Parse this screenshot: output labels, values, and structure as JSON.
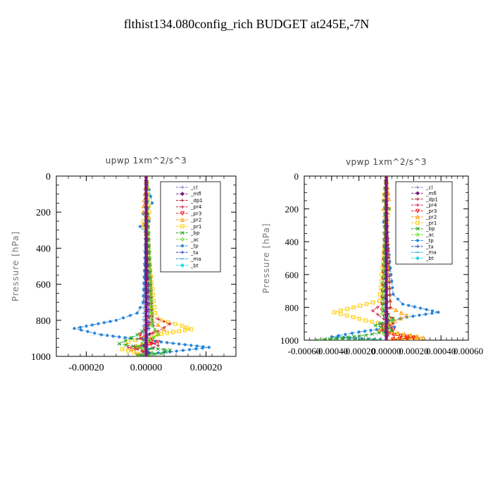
{
  "page": {
    "title": "flthist134.080config_rich  BUDGET at245E,-7N"
  },
  "legend_entries": [
    {
      "label": "_cl",
      "color": "#8c6cc0",
      "marker": "plus"
    },
    {
      "label": "_mfl",
      "color": "#7a1a7a",
      "marker": "diamond"
    },
    {
      "label": "_dp1",
      "color": "#b01a3a",
      "marker": "plus"
    },
    {
      "label": "_pr4",
      "color": "#d41e3c",
      "marker": "plus"
    },
    {
      "label": "_pr3",
      "color": "#f01818",
      "marker": "triangle-down"
    },
    {
      "label": "_pr2",
      "color": "#ff9a00",
      "marker": "triangle-up"
    },
    {
      "label": "_pr1",
      "color": "#ffcc00",
      "marker": "square"
    },
    {
      "label": "_bp",
      "color": "#22a222",
      "marker": "x"
    },
    {
      "label": "_ac",
      "color": "#66dd22",
      "marker": "diamond-open"
    },
    {
      "label": "_tp",
      "color": "#2080d8",
      "marker": "star"
    },
    {
      "label": "_ta",
      "color": "#2040c0",
      "marker": "plus"
    },
    {
      "label": "_ma",
      "color": "#20a0e0",
      "marker": "dash"
    },
    {
      "label": "_bt",
      "color": "#20d8e8",
      "marker": "diamond-filled"
    }
  ],
  "chart_data": [
    {
      "type": "line",
      "title": "upwp   1xm^2/s^3",
      "xlabel": "",
      "ylabel": "Pressure [hPa]",
      "xlim": [
        -0.0003,
        0.0003
      ],
      "ylim": [
        1000,
        0
      ],
      "xticks": [
        -0.0002,
        0,
        0.0002
      ],
      "xtick_labels": [
        "-0.00020",
        "0.00000",
        "0.00020"
      ],
      "yticks": [
        0,
        200,
        400,
        600,
        800,
        1000
      ],
      "ytick_labels": [
        "0",
        "200",
        "400",
        "600",
        "800",
        "1000"
      ],
      "legend": "top-right",
      "grid": false,
      "series": [
        {
          "name": "_tp",
          "x": [
            0,
            2e-05,
            -1e-05,
            1e-05,
            -2e-05,
            0,
            -1e-05,
            -3e-05,
            -0.0001,
            -0.00024,
            -0.00015,
            5e-05,
            0.00021,
            8e-05,
            -2e-05,
            0
          ],
          "y": [
            0,
            150,
            210,
            250,
            280,
            320,
            700,
            760,
            800,
            845,
            880,
            920,
            950,
            975,
            990,
            1000
          ]
        },
        {
          "name": "_pr1",
          "x": [
            0,
            1e-05,
            -1e-05,
            0,
            3e-05,
            5e-05,
            0.00012,
            0.00015,
            3e-05,
            -6e-05,
            -8e-05,
            -2e-05,
            0
          ],
          "y": [
            0,
            200,
            250,
            320,
            760,
            800,
            830,
            850,
            880,
            920,
            960,
            985,
            1000
          ]
        },
        {
          "name": "_pr2",
          "x": [
            0,
            -1e-05,
            1e-05,
            -1e-05,
            0,
            2e-05,
            6e-05,
            2e-05,
            -5e-05,
            -3e-05,
            0
          ],
          "y": [
            0,
            200,
            230,
            270,
            320,
            800,
            850,
            900,
            960,
            990,
            1000
          ]
        },
        {
          "name": "_pr4",
          "x": [
            0,
            2e-05,
            8e-05,
            4e-05,
            -2e-05,
            3e-05,
            -6e-05,
            1e-05,
            0
          ],
          "y": [
            0,
            780,
            820,
            860,
            900,
            930,
            950,
            980,
            1000
          ]
        },
        {
          "name": "_dp1",
          "x": [
            0,
            2e-05,
            3e-05,
            -2e-05,
            4e-05,
            -1e-05,
            0
          ],
          "y": [
            0,
            800,
            860,
            900,
            940,
            975,
            1000
          ]
        },
        {
          "name": "_pr3",
          "x": [
            0,
            1e-05,
            -2e-05,
            4e-05,
            -3e-05,
            1e-05,
            0
          ],
          "y": [
            0,
            820,
            880,
            920,
            955,
            985,
            1000
          ]
        },
        {
          "name": "_bp",
          "x": [
            0,
            2e-05,
            -3e-05,
            -9e-05,
            -2e-05,
            8e-05,
            5e-05,
            -3e-05,
            0
          ],
          "y": [
            0,
            820,
            880,
            930,
            950,
            965,
            985,
            995,
            1000
          ]
        },
        {
          "name": "_ac",
          "x": [
            0,
            2e-05,
            4e-05,
            1e-05,
            -3e-05,
            2e-05,
            0
          ],
          "y": [
            0,
            830,
            880,
            910,
            945,
            980,
            1000
          ]
        },
        {
          "name": "_ta",
          "x": [
            0,
            1e-05,
            -1e-05,
            1e-05,
            0
          ],
          "y": [
            0,
            880,
            940,
            980,
            1000
          ]
        },
        {
          "name": "_ma",
          "x": [
            0,
            -1e-05,
            1e-05,
            0
          ],
          "y": [
            0,
            900,
            960,
            1000
          ]
        },
        {
          "name": "_bt",
          "x": [
            0,
            0
          ],
          "y": [
            0,
            1000
          ]
        },
        {
          "name": "_cl",
          "x": [
            0,
            0
          ],
          "y": [
            0,
            1000
          ]
        },
        {
          "name": "_mfl",
          "x": [
            0,
            0
          ],
          "y": [
            0,
            1000
          ]
        }
      ]
    },
    {
      "type": "line",
      "title": "vpwp   1xm^2/s^3",
      "xlabel": "",
      "ylabel": "Pressure [hPa]",
      "xlim": [
        -0.0006,
        0.0006
      ],
      "ylim": [
        1000,
        0
      ],
      "xticks": [
        -0.0006,
        -0.0004,
        -0.0002,
        0,
        0.0002,
        0.0004,
        0.0006
      ],
      "xtick_labels": [
        "-0.00060",
        "-0.00040",
        "-0.00020",
        "0.00000",
        "0.00020",
        "0.00040",
        "0.00060"
      ],
      "yticks": [
        0,
        200,
        400,
        600,
        800,
        1000
      ],
      "ytick_labels": [
        "0",
        "200",
        "400",
        "600",
        "800",
        "1000"
      ],
      "legend": "top-right",
      "grid": false,
      "series": [
        {
          "name": "_tp",
          "x": [
            0,
            -2e-05,
            2e-05,
            -2e-05,
            0,
            5e-05,
            0.00012,
            0.00038,
            0.00015,
            -5e-05,
            6e-05,
            -0.0002,
            -0.0004,
            0
          ],
          "y": [
            0,
            150,
            200,
            280,
            320,
            720,
            780,
            830,
            860,
            900,
            920,
            950,
            980,
            1000
          ]
        },
        {
          "name": "_pr1",
          "x": [
            0,
            -2e-05,
            2e-05,
            0,
            -5e-05,
            -0.00038,
            -0.00015,
            3e-05,
            -4e-05,
            8e-05,
            0.00022,
            5e-05,
            0
          ],
          "y": [
            0,
            150,
            200,
            320,
            760,
            830,
            880,
            910,
            940,
            960,
            980,
            995,
            1000
          ]
        },
        {
          "name": "_pr2",
          "x": [
            0,
            2e-05,
            -2e-05,
            0,
            3e-05,
            0.00015,
            2e-05,
            -5e-05,
            0.00027,
            0
          ],
          "y": [
            0,
            140,
            200,
            320,
            800,
            850,
            900,
            940,
            985,
            1000
          ]
        },
        {
          "name": "_pr4",
          "x": [
            0,
            -3e-05,
            -0.0001,
            -2e-05,
            4e-05,
            1e-05,
            0
          ],
          "y": [
            0,
            780,
            820,
            870,
            920,
            960,
            1000
          ]
        },
        {
          "name": "_dp1",
          "x": [
            0,
            3e-05,
            -2e-05,
            5e-05,
            -3e-05,
            1e-05,
            0
          ],
          "y": [
            0,
            800,
            850,
            900,
            940,
            975,
            1000
          ]
        },
        {
          "name": "_pr3",
          "x": [
            0,
            -3e-05,
            4e-05,
            -3e-05,
            5e-05,
            1e-05,
            0.0002,
            5e-05,
            0
          ],
          "y": [
            0,
            820,
            870,
            910,
            940,
            965,
            985,
            995,
            1000
          ]
        },
        {
          "name": "_bp",
          "x": [
            0,
            -2e-05,
            5e-05,
            -8e-05,
            4e-05,
            -0.00015,
            -0.0005,
            0
          ],
          "y": [
            0,
            820,
            870,
            910,
            940,
            970,
            1000,
            1000
          ]
        },
        {
          "name": "_ac",
          "x": [
            0,
            -3e-05,
            4e-05,
            1e-05,
            -2e-05,
            0
          ],
          "y": [
            0,
            840,
            880,
            920,
            960,
            1000
          ]
        },
        {
          "name": "_ta",
          "x": [
            0,
            1e-05,
            -1e-05,
            0
          ],
          "y": [
            0,
            880,
            950,
            1000
          ]
        },
        {
          "name": "_ma",
          "x": [
            0,
            -1e-05,
            1e-05,
            0
          ],
          "y": [
            0,
            900,
            960,
            1000
          ]
        },
        {
          "name": "_bt",
          "x": [
            0,
            0
          ],
          "y": [
            0,
            1000
          ]
        },
        {
          "name": "_cl",
          "x": [
            0,
            0
          ],
          "y": [
            0,
            1000
          ]
        },
        {
          "name": "_mfl",
          "x": [
            0,
            0
          ],
          "y": [
            0,
            1000
          ]
        }
      ]
    }
  ]
}
